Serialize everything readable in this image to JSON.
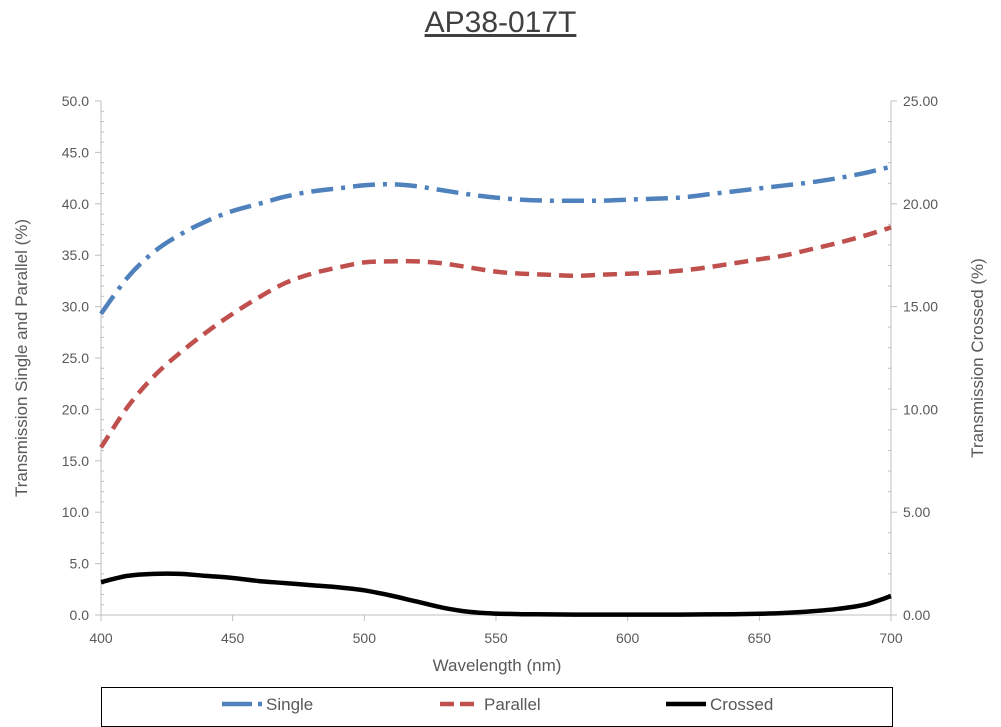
{
  "chart_data": {
    "type": "line",
    "title": "AP38-017T",
    "xlabel": "Wavelength (nm)",
    "ylabel": "Transmission Single and Parallel (%)",
    "y2label": "Transmission Crossed (%)",
    "xlim": [
      400,
      700
    ],
    "ylim": [
      0,
      50
    ],
    "y2lim": [
      0,
      25
    ],
    "x_ticks": [
      "400",
      "450",
      "500",
      "550",
      "600",
      "650",
      "700"
    ],
    "y_ticks": [
      "0.0",
      "5.0",
      "10.0",
      "15.0",
      "20.0",
      "25.0",
      "30.0",
      "35.0",
      "40.0",
      "45.0",
      "50.0"
    ],
    "y2_ticks": [
      "0.00",
      "5.00",
      "10.00",
      "15.00",
      "20.00",
      "25.00"
    ],
    "grid": false,
    "legend_position": "bottom",
    "x": [
      400,
      410,
      420,
      430,
      440,
      450,
      460,
      470,
      480,
      490,
      500,
      510,
      520,
      530,
      540,
      550,
      560,
      570,
      580,
      590,
      600,
      610,
      620,
      630,
      640,
      650,
      660,
      670,
      680,
      690,
      700
    ],
    "series": [
      {
        "name": "Single",
        "axis": "left",
        "color": "#4f81bd",
        "dash": "dash-dot",
        "values": [
          29.3,
          32.8,
          35.3,
          37.0,
          38.3,
          39.3,
          40.0,
          40.7,
          41.2,
          41.5,
          41.8,
          41.9,
          41.7,
          41.3,
          40.9,
          40.6,
          40.4,
          40.3,
          40.3,
          40.3,
          40.4,
          40.5,
          40.6,
          40.9,
          41.2,
          41.5,
          41.8,
          42.1,
          42.5,
          43.0,
          43.6
        ]
      },
      {
        "name": "Parallel",
        "axis": "left",
        "color": "#c0504d",
        "dash": "dash",
        "values": [
          16.3,
          20.2,
          23.2,
          25.5,
          27.5,
          29.3,
          30.9,
          32.3,
          33.2,
          33.8,
          34.3,
          34.4,
          34.4,
          34.2,
          33.8,
          33.4,
          33.2,
          33.1,
          33.0,
          33.1,
          33.2,
          33.3,
          33.5,
          33.8,
          34.2,
          34.6,
          35.0,
          35.6,
          36.2,
          36.9,
          37.7
        ]
      },
      {
        "name": "Crossed",
        "axis": "right",
        "color": "#000000",
        "dash": "solid",
        "values": [
          1.6,
          1.9,
          2.0,
          2.0,
          1.9,
          1.8,
          1.65,
          1.55,
          1.45,
          1.35,
          1.2,
          0.95,
          0.65,
          0.35,
          0.15,
          0.07,
          0.04,
          0.03,
          0.02,
          0.02,
          0.02,
          0.02,
          0.02,
          0.03,
          0.04,
          0.06,
          0.1,
          0.18,
          0.3,
          0.5,
          0.92
        ]
      }
    ]
  }
}
